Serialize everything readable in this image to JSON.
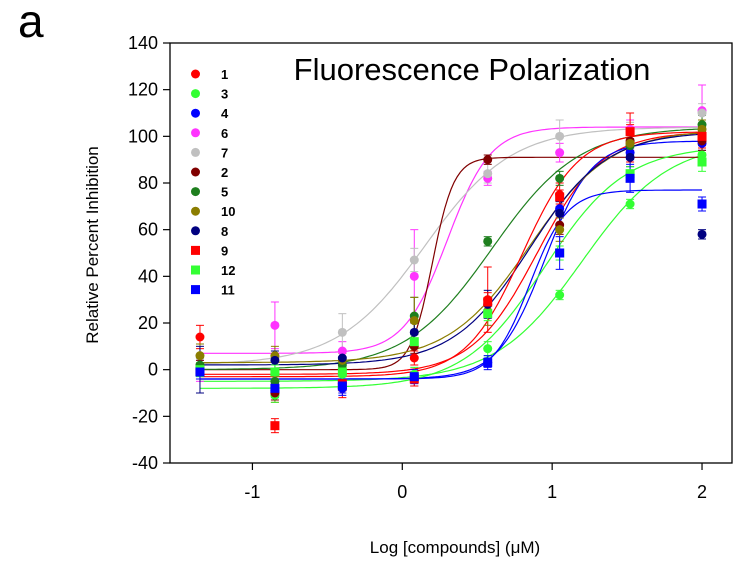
{
  "panel_label": "a",
  "chart_data": {
    "type": "scatter",
    "title": "Fluorescence Polarization",
    "xlabel": "Log [compounds] (μM)",
    "ylabel": "Relative Percent Inhibition",
    "xlim": [
      -1.55,
      2.2
    ],
    "ylim": [
      -40,
      140
    ],
    "xticks": [
      -1,
      0,
      1,
      2
    ],
    "yticks": [
      -40,
      -20,
      0,
      20,
      40,
      60,
      80,
      100,
      120,
      140
    ],
    "grid": false,
    "legend_position": "top-left",
    "x": [
      -1.35,
      -0.85,
      -0.4,
      0.08,
      0.57,
      1.05,
      1.52,
      2.0
    ],
    "series": [
      {
        "name": "1",
        "marker": "circle",
        "color": "#ff0000",
        "values": [
          14,
          -10,
          -8,
          5,
          30,
          75,
          97,
          101
        ],
        "errors": [
          5,
          4,
          4,
          3,
          14,
          5,
          8,
          6
        ],
        "fit": {
          "bottom": -2,
          "top": 102,
          "ec50": 0.9,
          "hill": 2.0
        }
      },
      {
        "name": "3",
        "marker": "circle",
        "color": "#33ff33",
        "values": [
          -1,
          -11,
          -2,
          -2,
          9,
          32,
          71,
          92
        ],
        "errors": [
          3,
          3,
          3,
          3,
          3,
          2,
          2,
          4
        ],
        "fit": {
          "bottom": -5,
          "top": 98,
          "ec50": 1.2,
          "hill": 1.5
        }
      },
      {
        "name": "4",
        "marker": "circle",
        "color": "#0000ff",
        "values": [
          1,
          -9,
          -8,
          -4,
          3,
          69,
          93,
          97
        ],
        "errors": [
          3,
          3,
          3,
          3,
          2,
          4,
          3,
          3
        ],
        "fit": {
          "bottom": -4,
          "top": 98,
          "ec50": 0.95,
          "hill": 2.8
        }
      },
      {
        "name": "6",
        "marker": "circle",
        "color": "#ff33ff",
        "values": [
          0,
          19,
          8,
          40,
          82,
          93,
          103,
          111
        ],
        "errors": [
          5,
          10,
          4,
          20,
          3,
          4,
          4,
          11
        ],
        "fit": {
          "bottom": 7,
          "top": 104,
          "ec50": 0.3,
          "hill": 3.0
        }
      },
      {
        "name": "7",
        "marker": "circle",
        "color": "#c0c0c0",
        "values": [
          1,
          5,
          16,
          47,
          84,
          100,
          102,
          110
        ],
        "errors": [
          3,
          3,
          8,
          5,
          4,
          7,
          4,
          4
        ],
        "fit": {
          "bottom": 2,
          "top": 104,
          "ec50": 0.15,
          "hill": 1.5
        }
      },
      {
        "name": "2",
        "marker": "circle",
        "color": "#800000",
        "values": [
          1,
          -10,
          -6,
          10,
          90,
          62,
          98,
          98
        ],
        "errors": [
          3,
          3,
          3,
          3,
          2,
          4,
          4,
          4
        ],
        "fit": {
          "bottom": 0,
          "top": 91,
          "ec50": 0.2,
          "hill": 6.0
        }
      },
      {
        "name": "5",
        "marker": "circle",
        "color": "#1e7f1e",
        "values": [
          2,
          -5,
          2,
          23,
          55,
          82,
          96,
          105
        ],
        "errors": [
          3,
          3,
          3,
          8,
          2,
          3,
          3,
          4
        ],
        "fit": {
          "bottom": 0,
          "top": 104,
          "ec50": 0.6,
          "hill": 1.5
        }
      },
      {
        "name": "10",
        "marker": "circle",
        "color": "#8b7d00",
        "values": [
          6,
          6,
          4,
          21,
          25,
          60,
          97,
          103
        ],
        "errors": [
          5,
          4,
          3,
          10,
          6,
          5,
          4,
          4
        ],
        "fit": {
          "bottom": 3,
          "top": 103,
          "ec50": 0.85,
          "hill": 1.6
        }
      },
      {
        "name": "8",
        "marker": "circle",
        "color": "#000080",
        "values": [
          0,
          4,
          5,
          16,
          28,
          67,
          91,
          58
        ],
        "errors": [
          10,
          4,
          3,
          4,
          6,
          5,
          4,
          2
        ],
        "fit": {
          "bottom": 2,
          "top": 102,
          "ec50": 0.85,
          "hill": 1.7
        }
      },
      {
        "name": "9",
        "marker": "square",
        "color": "#ff0000",
        "values": [
          -1,
          -24,
          -6,
          -4,
          29,
          74,
          102,
          100
        ],
        "errors": [
          3,
          3,
          3,
          3,
          4,
          3,
          8,
          4
        ],
        "fit": {
          "bottom": -3,
          "top": 102,
          "ec50": 0.8,
          "hill": 2.3
        }
      },
      {
        "name": "12",
        "marker": "square",
        "color": "#33ff33",
        "values": [
          0,
          -1,
          -1,
          12,
          24,
          50,
          84,
          89
        ],
        "errors": [
          3,
          3,
          3,
          3,
          3,
          3,
          3,
          4
        ],
        "fit": {
          "bottom": -8,
          "top": 96,
          "ec50": 0.95,
          "hill": 1.6
        }
      },
      {
        "name": "11",
        "marker": "square",
        "color": "#0000ff",
        "values": [
          -1,
          -8,
          -7,
          -3,
          3,
          50,
          82,
          71
        ],
        "errors": [
          3,
          3,
          3,
          3,
          3,
          7,
          6,
          3
        ],
        "fit": {
          "bottom": -4,
          "top": 77,
          "ec50": 0.85,
          "hill": 3.5
        }
      }
    ]
  }
}
